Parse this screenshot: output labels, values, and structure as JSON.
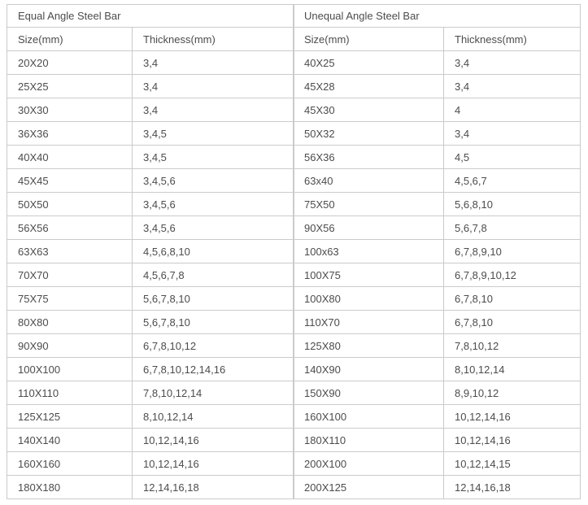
{
  "colors": {
    "border": "#cbcbcb",
    "text": "#4c4c4c",
    "background": "#ffffff"
  },
  "tables": {
    "equal": {
      "title": "Equal Angle Steel Bar",
      "headers": {
        "size": "Size(mm)",
        "thickness": "Thickness(mm)"
      },
      "rows": [
        {
          "size": "20X20",
          "thickness": "3,4"
        },
        {
          "size": "25X25",
          "thickness": "3,4"
        },
        {
          "size": "30X30",
          "thickness": "3,4"
        },
        {
          "size": "36X36",
          "thickness": "3,4,5"
        },
        {
          "size": "40X40",
          "thickness": "3,4,5"
        },
        {
          "size": "45X45",
          "thickness": "3,4,5,6"
        },
        {
          "size": "50X50",
          "thickness": "3,4,5,6"
        },
        {
          "size": "56X56",
          "thickness": "3,4,5,6"
        },
        {
          "size": "63X63",
          "thickness": "4,5,6,8,10"
        },
        {
          "size": "70X70",
          "thickness": "4,5,6,7,8"
        },
        {
          "size": "75X75",
          "thickness": "5,6,7,8,10"
        },
        {
          "size": "80X80",
          "thickness": "5,6,7,8,10"
        },
        {
          "size": "90X90",
          "thickness": "6,7,8,10,12"
        },
        {
          "size": "100X100",
          "thickness": "6,7,8,10,12,14,16"
        },
        {
          "size": "110X110",
          "thickness": "7,8,10,12,14"
        },
        {
          "size": "125X125",
          "thickness": "8,10,12,14"
        },
        {
          "size": "140X140",
          "thickness": "10,12,14,16"
        },
        {
          "size": "160X160",
          "thickness": "10,12,14,16"
        },
        {
          "size": "180X180",
          "thickness": "12,14,16,18"
        }
      ]
    },
    "unequal": {
      "title": "Unequal Angle Steel Bar",
      "headers": {
        "size": "Size(mm)",
        "thickness": "Thickness(mm)"
      },
      "rows": [
        {
          "size": "40X25",
          "thickness": "3,4"
        },
        {
          "size": "45X28",
          "thickness": "3,4"
        },
        {
          "size": "45X30",
          "thickness": "4"
        },
        {
          "size": "50X32",
          "thickness": "3,4"
        },
        {
          "size": "56X36",
          "thickness": "4,5"
        },
        {
          "size": "63x40",
          "thickness": "4,5,6,7"
        },
        {
          "size": "75X50",
          "thickness": "5,6,8,10"
        },
        {
          "size": "90X56",
          "thickness": "5,6,7,8"
        },
        {
          "size": "100x63",
          "thickness": "6,7,8,9,10"
        },
        {
          "size": "100X75",
          "thickness": "6,7,8,9,10,12"
        },
        {
          "size": "100X80",
          "thickness": "6,7,8,10"
        },
        {
          "size": "110X70",
          "thickness": "6,7,8,10"
        },
        {
          "size": "125X80",
          "thickness": "7,8,10,12"
        },
        {
          "size": "140X90",
          "thickness": "8,10,12,14"
        },
        {
          "size": "150X90",
          "thickness": "8,9,10,12"
        },
        {
          "size": "160X100",
          "thickness": "10,12,14,16"
        },
        {
          "size": "180X110",
          "thickness": "10,12,14,16"
        },
        {
          "size": "200X100",
          "thickness": "10,12,14,15"
        },
        {
          "size": "200X125",
          "thickness": "12,14,16,18"
        }
      ]
    }
  }
}
